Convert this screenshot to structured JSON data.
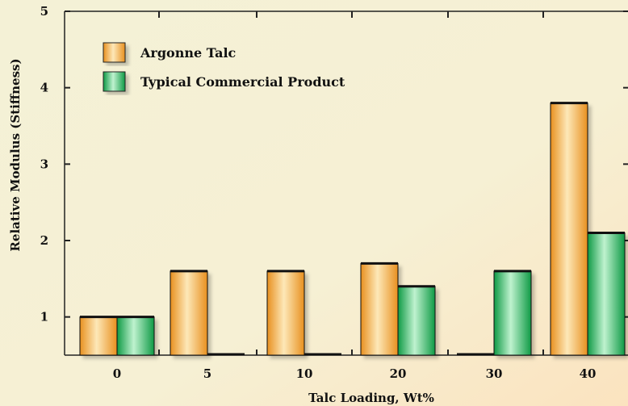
{
  "chart_data": {
    "type": "bar",
    "title": "",
    "xlabel": "Talc Loading, Wt%",
    "ylabel": "Relative Modulus (Stiffness)",
    "categories": [
      "0",
      "5",
      "10",
      "20",
      "30",
      "40"
    ],
    "series": [
      {
        "name": "Argonne Talc",
        "values": [
          1.0,
          1.6,
          1.6,
          1.7,
          null,
          3.8
        ]
      },
      {
        "name": "Typical Commercial Product",
        "values": [
          1.0,
          null,
          null,
          1.4,
          1.6,
          2.1
        ]
      }
    ],
    "ylim": [
      0.5,
      5
    ],
    "yticks": [
      "1",
      "2",
      "3",
      "4",
      "5"
    ],
    "grid": false,
    "legend_position": "top-left"
  },
  "colors": {
    "argonne_edge": "#e8901f",
    "argonne_center": "#fde8b8",
    "commercial_edge": "#0f9a45",
    "commercial_center": "#bff2cf",
    "axis": "#222222",
    "background": "#f5f2d8"
  }
}
